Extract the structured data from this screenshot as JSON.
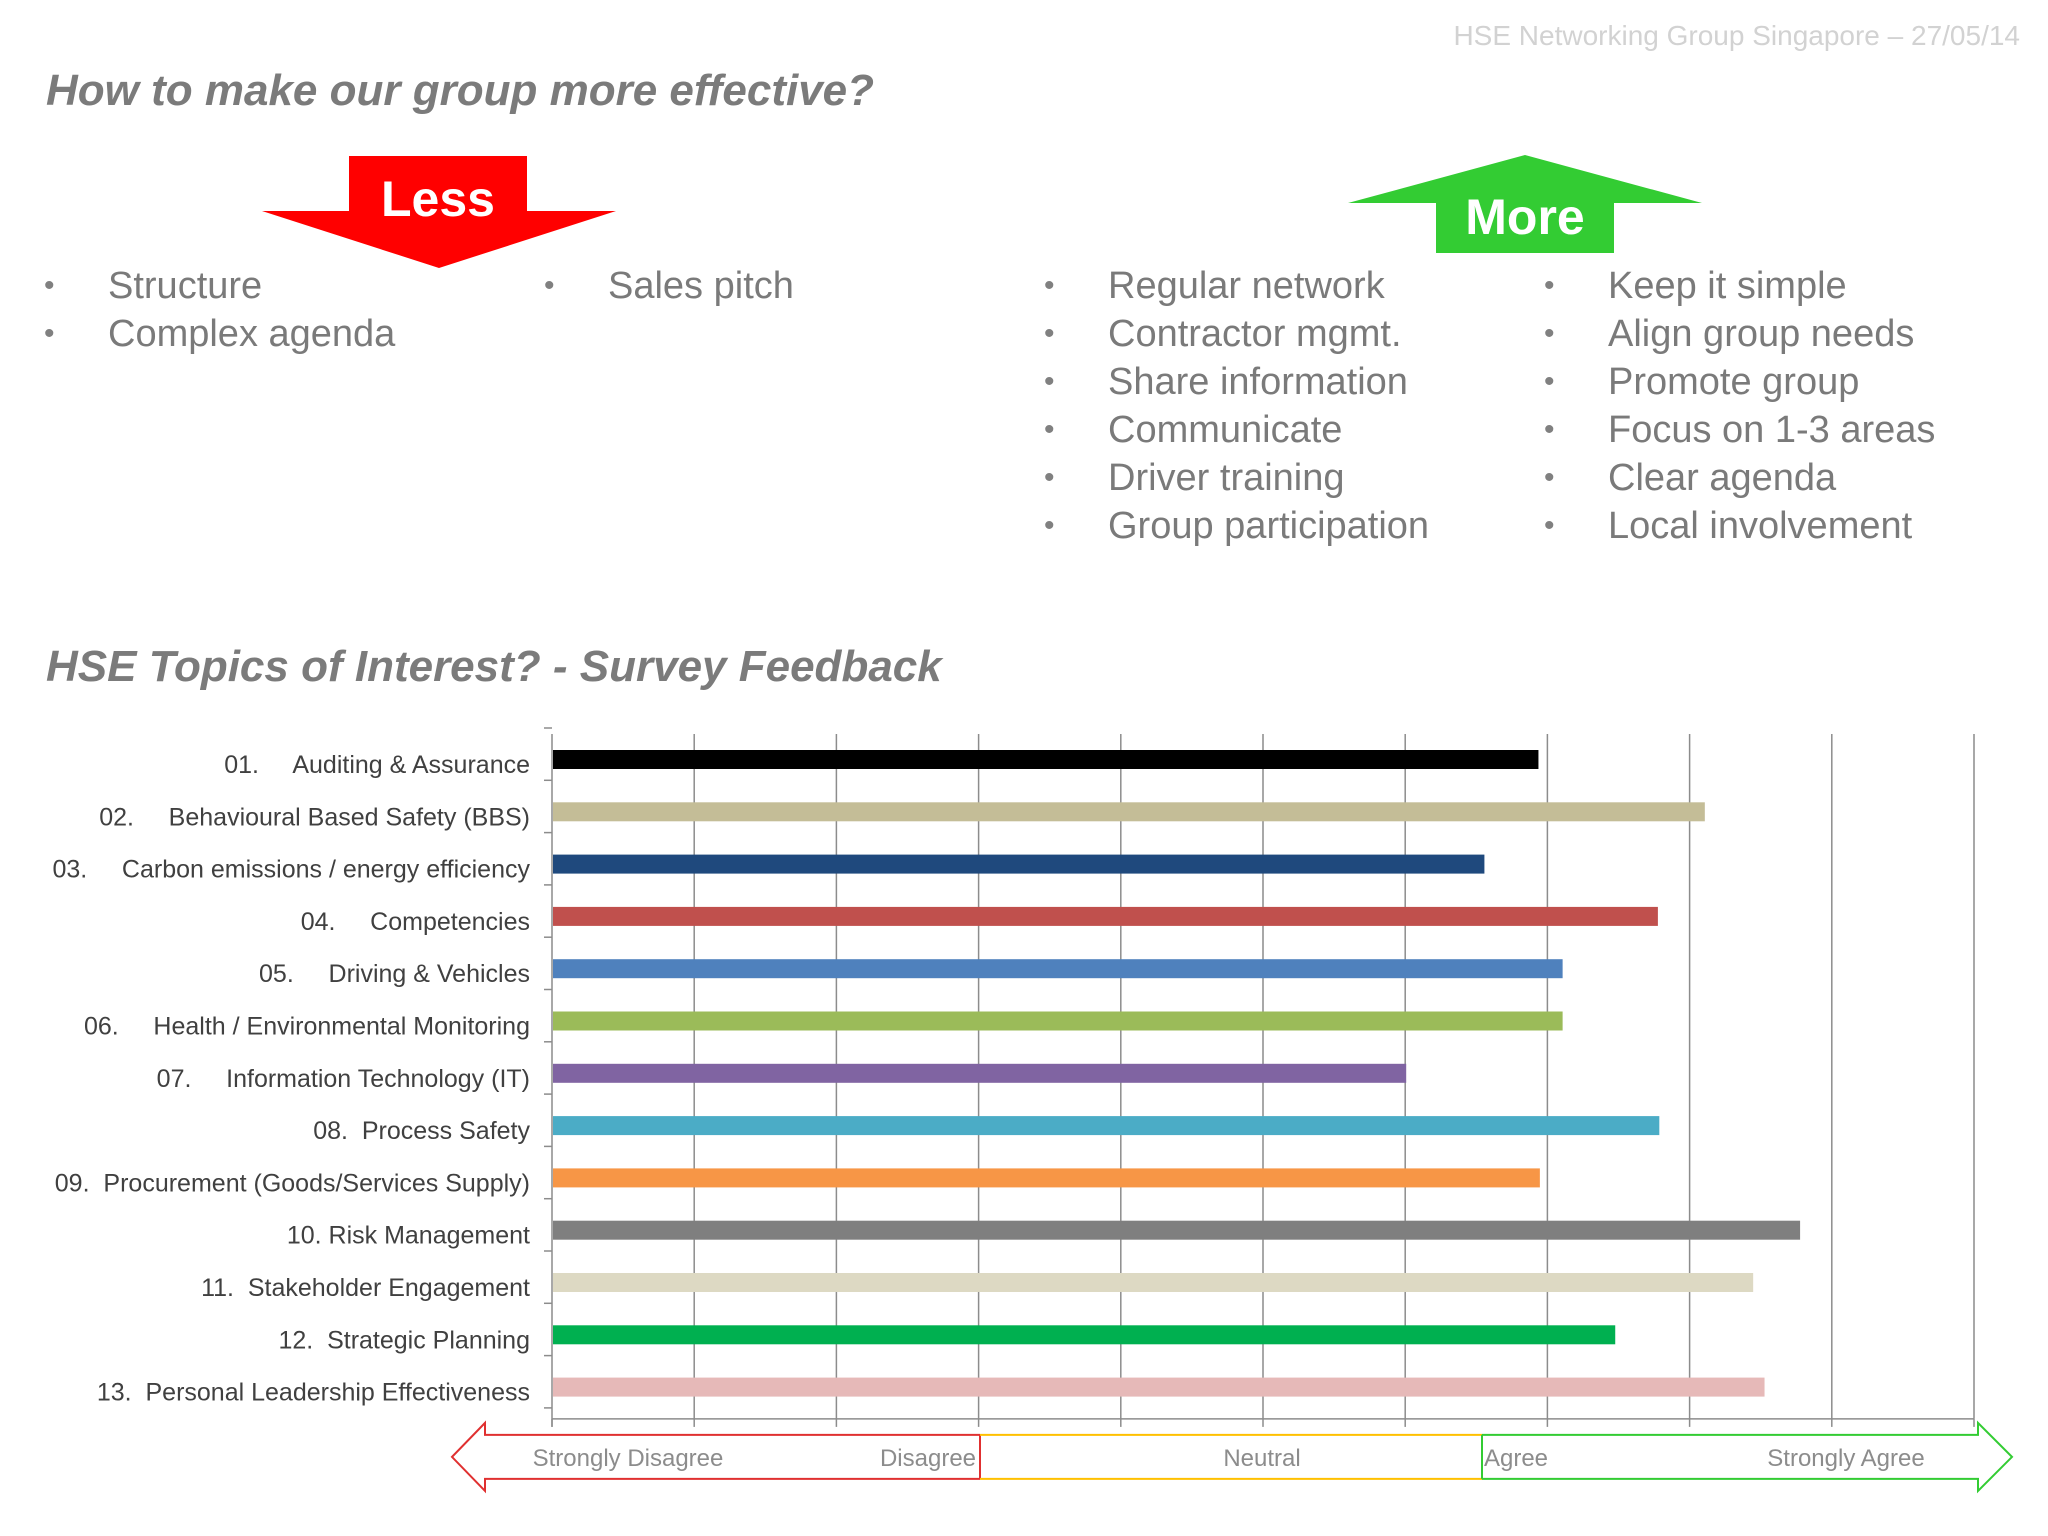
{
  "header": {
    "text": "HSE Networking Group Singapore – 27/05/14"
  },
  "section1": {
    "title": "How to make our group more effective?",
    "less": {
      "label": "Less",
      "color": "#ff0000",
      "col1": [
        "Structure",
        "Complex agenda"
      ],
      "col2": [
        "Sales pitch"
      ]
    },
    "more": {
      "label": "More",
      "color": "#33cc33",
      "col1": [
        "Regular network",
        "Contractor mgmt.",
        "Share information",
        "Communicate",
        "Driver training",
        "Group participation"
      ],
      "col2": [
        "Keep it simple",
        "Align group needs",
        "Promote group",
        "Focus on 1-3 areas",
        "Clear agenda",
        "Local involvement"
      ]
    },
    "bullet": "•"
  },
  "section2": {
    "title": "HSE Topics of Interest? - Survey Feedback"
  },
  "chart_data": {
    "type": "bar",
    "orientation": "horizontal",
    "categories": [
      "01.     Auditing & Assurance",
      "02.     Behavioural Based Safety (BBS)",
      "03.     Carbon emissions / energy efficiency",
      "04.     Competencies",
      "05.     Driving & Vehicles",
      "06.     Health / Environmental Monitoring",
      "07.     Information Technology (IT)",
      "08.  Process Safety",
      "09.  Procurement (Goods/Services Supply)",
      "10. Risk Management",
      "11.  Stakeholder Engagement",
      "12.  Strategic Planning",
      "13.  Personal Leadership Effectiveness"
    ],
    "values": [
      6.93,
      8.1,
      6.55,
      7.77,
      7.1,
      7.1,
      6.0,
      7.78,
      6.94,
      8.77,
      8.44,
      7.47,
      8.52
    ],
    "colors": [
      "#000000",
      "#c4bd97",
      "#1f497d",
      "#c0504d",
      "#4f81bd",
      "#9bbb59",
      "#8064a2",
      "#4bacc6",
      "#f79646",
      "#7f7f7f",
      "#ddd9c3",
      "#00b050",
      "#e6b9b8"
    ],
    "xlim": [
      0,
      10
    ],
    "grid": true,
    "scale": [
      {
        "label": "Strongly Disagree",
        "color": "#e03030"
      },
      {
        "label": "Disagree",
        "color": "#e03030"
      },
      {
        "label": "Neutral",
        "color": "#ffc000"
      },
      {
        "label": "Agree",
        "color": "#33cc33"
      },
      {
        "label": "Strongly Agree",
        "color": "#33cc33"
      }
    ]
  }
}
